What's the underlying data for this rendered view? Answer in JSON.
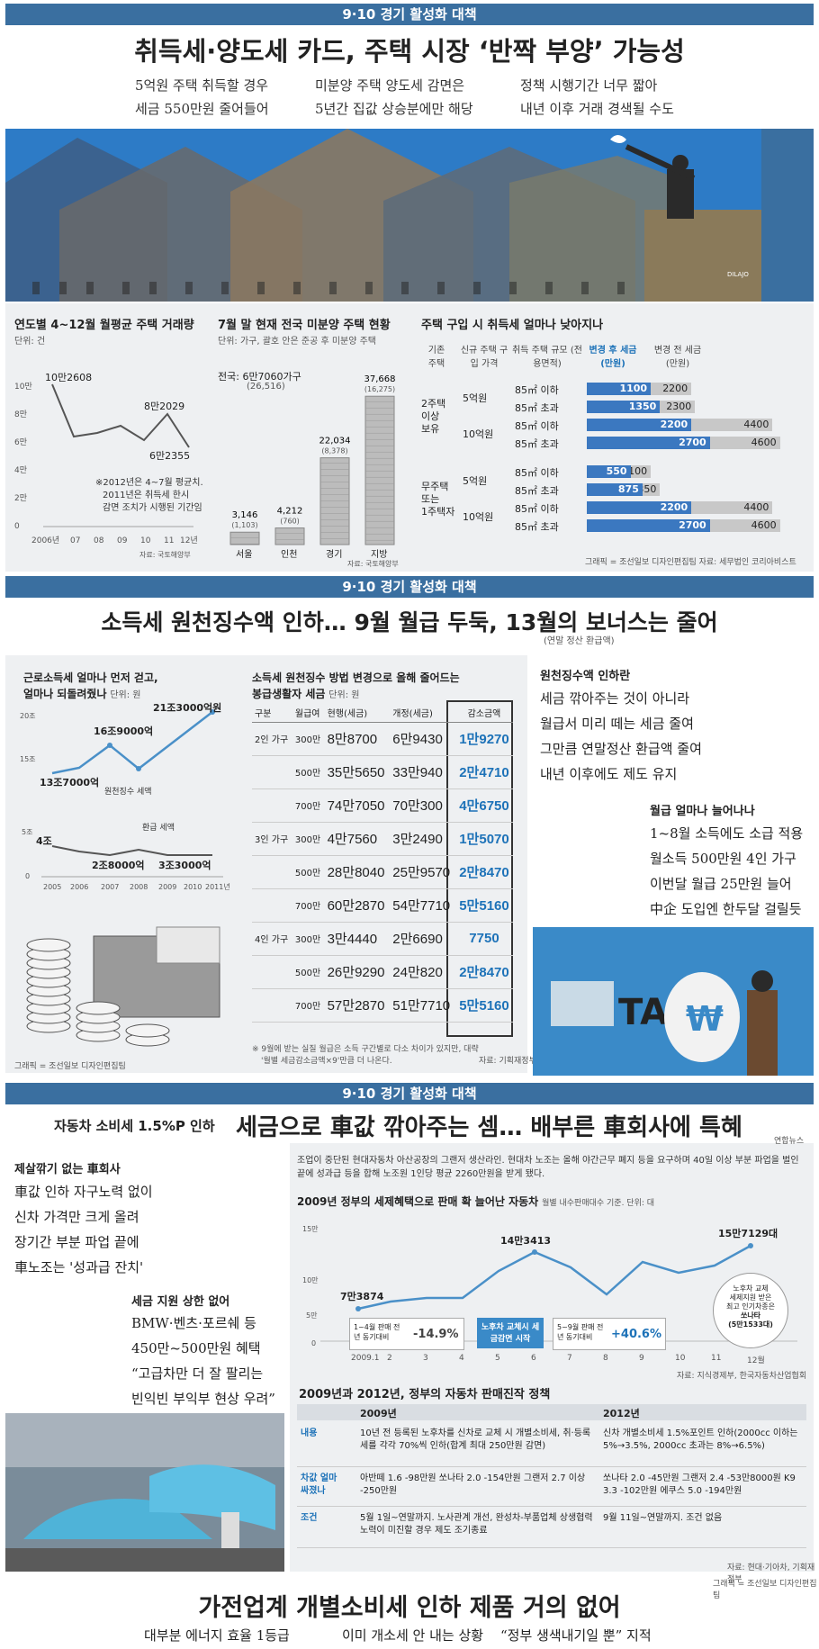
{
  "sec1": {
    "header": "9·10 경기 활성화 대책",
    "headline": "취득세·양도세 카드, 주택 시장 ‘반짝 부양’ 가능성",
    "subs": [
      [
        "5억원 주택 취득할 경우",
        "세금 550만원 줄어들어"
      ],
      [
        "미분양 주택 양도세 감면은",
        "5년간 집값 상승분에만 해당"
      ],
      [
        "정책 시행기간 너무 짧아",
        "내년 이후 거래 경색될 수도"
      ]
    ],
    "illustrator": "DILAJO",
    "chart1": {
      "title": "연도별 4~12월 월평균 주택 거래량",
      "unit": "단위: 건",
      "yticks": [
        "0",
        "2만",
        "4만",
        "6만",
        "8만",
        "10만"
      ],
      "xticks": [
        "2006년",
        "07",
        "08",
        "09",
        "10",
        "11",
        "12년"
      ],
      "labels": [
        "10만2608",
        "8만2029",
        "6만2355"
      ],
      "note": [
        "※2012년은 4~7월 평균치.",
        "2011년은 취득세 한시",
        "감면 조치가 시행된 기간임."
      ],
      "source": "자료: 국토해양부"
    },
    "chart2": {
      "title": "7월 말 현재 전국 미분양 주택 현황",
      "unit": "단위: 가구, 괄호 안은 준공 후 미분양 주택",
      "total": "전국: 6만7060가구",
      "total_sub": "(26,516)",
      "bars": [
        {
          "label": "서울",
          "value": "3,146",
          "sub": "(1,103)"
        },
        {
          "label": "인천",
          "value": "4,212",
          "sub": "(760)"
        },
        {
          "label": "경기",
          "value": "22,034",
          "sub": "(8,378)"
        },
        {
          "label": "지방",
          "value": "37,668",
          "sub": "(16,275)"
        }
      ],
      "source": "자료: 국토해양부"
    },
    "chart3": {
      "title": "주택 구입 시 취득세 얼마나 낮아지나",
      "col_heads": [
        "기존 주택",
        "신규 주택 구입 가격",
        "취득 주택 규모 (전용면적)",
        "변경 후 세금(만원)",
        "변경 전 세금(만원)"
      ],
      "groups": [
        {
          "name": [
            "2주택",
            "이상",
            "보유"
          ],
          "rows": [
            {
              "price": "5억원",
              "size": "85㎡ 이하",
              "after": "1100",
              "before": "2200"
            },
            {
              "price": "",
              "size": "85㎡ 초과",
              "after": "1350",
              "before": "2300"
            },
            {
              "price": "10억원",
              "size": "85㎡ 이하",
              "after": "2200",
              "before": "4400"
            },
            {
              "price": "",
              "size": "85㎡ 초과",
              "after": "2700",
              "before": "4600"
            }
          ]
        },
        {
          "name": [
            "무주택",
            "또는",
            "1주택자"
          ],
          "rows": [
            {
              "price": "5억원",
              "size": "85㎡ 이하",
              "after": "550",
              "before": "1100"
            },
            {
              "price": "",
              "size": "85㎡ 초과",
              "after": "875",
              "before": "1350"
            },
            {
              "price": "10억원",
              "size": "85㎡ 이하",
              "after": "2200",
              "before": "4400"
            },
            {
              "price": "",
              "size": "85㎡ 초과",
              "after": "2700",
              "before": "4600"
            }
          ]
        }
      ],
      "source": "그래픽 = 조선일보 디자인편집팀   자료: 세무법인 코리아비스트"
    }
  },
  "sec2": {
    "header": "9·10 경기 활성화 대책",
    "headline": "소득세 원천징수액 인하… 9월 월급 두둑, 13월의 보너스는 줄어",
    "headline_note": "(연말 정산 환급액)",
    "chart": {
      "title1": "근로소득세 얼마나 먼저 걷고,",
      "title2": "얼마나 되돌려줬나",
      "unit": "단위: 원",
      "labels": [
        "21조3000억원",
        "16조9000억",
        "13조7000억",
        "원천징수 세액",
        "환급 세액",
        "4조",
        "2조8000억",
        "3조3000억"
      ],
      "yticks": [
        "20조",
        "15조",
        "5조",
        "0"
      ],
      "xticks": [
        "2005",
        "2006",
        "2007",
        "2008",
        "2009",
        "2010",
        "2011년"
      ],
      "credit": "그래픽 = 조선일보 디자인편집팀"
    },
    "table": {
      "title1": "소득세 원천징수 방법 변경으로 올해 줄어드는",
      "title2": "봉급생활자 세금",
      "unit": "단위: 원",
      "heads": [
        "구분",
        "월급여",
        "현행(세금)",
        "개정(세금)",
        "감소금액"
      ],
      "groups": [
        {
          "name": "2인 가구",
          "rows": [
            [
              "300만",
              "8만8700",
              "6만9430",
              "1만9270"
            ],
            [
              "500만",
              "35만5650",
              "33만940",
              "2만4710"
            ],
            [
              "700만",
              "74만7050",
              "70만300",
              "4만6750"
            ]
          ]
        },
        {
          "name": "3인 가구",
          "rows": [
            [
              "300만",
              "4만7560",
              "3만2490",
              "1만5070"
            ],
            [
              "500만",
              "28만8040",
              "25만9570",
              "2만8470"
            ],
            [
              "700만",
              "60만2870",
              "54만7710",
              "5만5160"
            ]
          ]
        },
        {
          "name": "4인 가구",
          "rows": [
            [
              "300만",
              "3만4440",
              "2만6690",
              "7750"
            ],
            [
              "500만",
              "26만9290",
              "24만820",
              "2만8470"
            ],
            [
              "700만",
              "57만2870",
              "51만7710",
              "5만5160"
            ]
          ]
        }
      ],
      "note1": "※ 9월에 받는 실질 월급은 소득 구간별로 다소 차이가 있지만, 대략",
      "note2": "'월별 세금감소금액×9'만큼 더 나온다.",
      "source": "자료: 기획재정부"
    },
    "side": {
      "title1": "원천징수액 인하란",
      "lines1": [
        "세금 깎아주는 것이 아니라",
        "월급서 미리 떼는 세금 줄여",
        "그만큼 연말정산 환급액 줄여",
        "내년 이후에도 제도 유지"
      ],
      "title2": "월급 얼마나 늘어나나",
      "lines2": [
        "1~8월 소득에도 소급 적용",
        "월소득 500만원 4인 가구",
        "이번달 월급 25만원 늘어",
        "中企 도입엔 한두달 걸릴듯"
      ],
      "tax_word": "TAX",
      "won": "₩"
    }
  },
  "sec3": {
    "header": "9·10 경기 활성화 대책",
    "kicker": "자동차 소비세 1.5%P 인하",
    "headline": "세금으로 車값 깎아주는 셈… 배부른 車회사에 특혜",
    "left": {
      "title1": "제살깎기 없는 車회사",
      "lines1": [
        "車값 인하 자구노력 없이",
        "신차 가격만 크게 올려",
        "장기간 부분 파업 끝에",
        "車노조는 '성과급 잔치'"
      ],
      "title2": "세금 지원 상한 없어",
      "lines2": [
        "BMW·벤츠·포르쉐 등",
        "450만~500만원 혜택",
        "“고급차만 더 잘 팔리는",
        "빈익빈 부익부 현상 우려”"
      ]
    },
    "photo_credit": "연합뉴스",
    "intro": "조업이 중단된 현대자동차 아산공장의 그랜저 생산라인. 현대차 노조는 올해 야간근무 폐지 등을 요구하며 40일 이상 부분 파업을 벌인 끝에 성과급 등을 합해 노조원 1인당 평균 2260만원을 받게 됐다.",
    "chart": {
      "title": "2009년 정부의 세제혜택으로 판매 확 늘어난 자동차",
      "unit": "월별 내수판매대수 기준. 단위: 대",
      "yticks": [
        "0",
        "5만",
        "10만",
        "15만"
      ],
      "xticks": [
        "2009.1",
        "2",
        "3",
        "4",
        "5",
        "6",
        "7",
        "8",
        "9",
        "10",
        "11",
        "12월"
      ],
      "labels": [
        "7만3874",
        "14만3413",
        "15만7129대"
      ],
      "box1_title": "1~4월 판매 전년 동기대비",
      "box1_val": "-14.9%",
      "box_mid": "노후차 교체시 세금감면 시작",
      "box2_title": "5~9월 판매 전년 동기대비",
      "box2_val": "+40.6%",
      "bubble": [
        "노후차 교체",
        "세제지원 받은",
        "최고 인기차종은",
        "쏘나타",
        "(5만1533대)"
      ],
      "source": "자료: 지식경제부, 한국자동차산업협회"
    },
    "policy": {
      "title": "2009년과 2012년, 정부의 자동차 판매진작 정책",
      "col1": "2009년",
      "col2": "2012년",
      "rows": [
        {
          "h": "내용",
          "a": "10년 전 등록된 노후차를 신차로 교체 시 개별소비세, 취·등록세를 각각 70%씩 인하(합계 최대 250만원 감면)",
          "b": "신차 개별소비세 1.5%포인트 인하(2000cc 이하는 5%→3.5%, 2000cc 초과는 8%→6.5%)"
        },
        {
          "h": "차값 얼마 싸졌나",
          "a": "아반떼 1.6 -98만원   쏘나타 2.0 -154만원   그랜저 2.7 이상 -250만원",
          "b": "쏘나타 2.0 -45만원   그랜저 2.4 -53만8000원   K9 3.3 -102만원   에쿠스 5.0 -194만원"
        },
        {
          "h": "조건",
          "a": "5월 1일~연말까지. 노사관계 개선, 완성차-부품업체 상생협력 노력이 미진할 경우 제도 조기종료",
          "b": "9월 11일~연말까지. 조건 없음"
        }
      ],
      "source": "자료: 현대·기아차, 기획재정부",
      "credit": "그래픽 = 조선일보 디자인편집팀"
    }
  },
  "footer": {
    "headline": "가전업계 개별소비세 인하 제품 거의 없어",
    "subs": [
      "대부분 에너지 효율 1등급",
      "이미 개소세 안 내는 상황",
      "“정부 생색내기일 뿐” 지적"
    ]
  },
  "colors": {
    "header": "#3a6fa0",
    "accent_blue": "#1d72b8",
    "bar_new": "#3b78c0",
    "bar_old": "#c8c8c8",
    "panel": "#eef0f2"
  }
}
